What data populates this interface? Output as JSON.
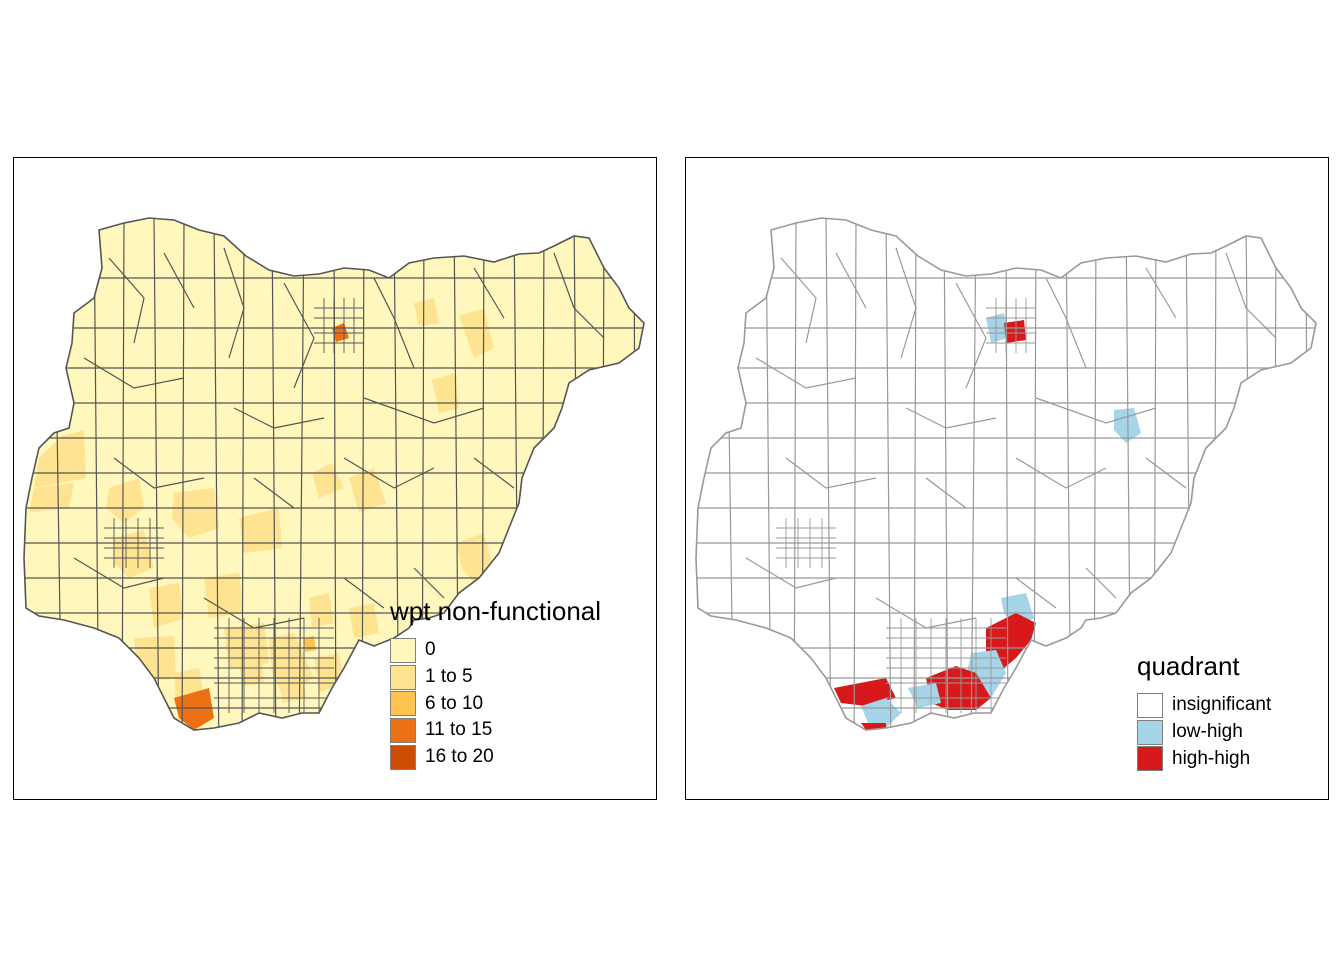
{
  "maps": [
    {
      "id": "left",
      "legend": {
        "title": "wpt non-functional",
        "items": [
          {
            "label": "0",
            "color": "#FFF7BC"
          },
          {
            "label": "1 to 5",
            "color": "#FEE391"
          },
          {
            "label": "6 to 10",
            "color": "#FEC44F"
          },
          {
            "label": "11 to 15",
            "color": "#EC7014"
          },
          {
            "label": "16 to 20",
            "color": "#CC4C02"
          }
        ]
      },
      "base_fill": "#FFF7BC",
      "border_color": "#555555"
    },
    {
      "id": "right",
      "legend": {
        "title": "quadrant",
        "items": [
          {
            "label": "insignificant",
            "color": "#FFFFFF"
          },
          {
            "label": "low-high",
            "color": "#A6D4E8"
          },
          {
            "label": "high-high",
            "color": "#D7191C"
          }
        ]
      },
      "base_fill": "#FFFFFF",
      "border_color": "#999999"
    }
  ]
}
